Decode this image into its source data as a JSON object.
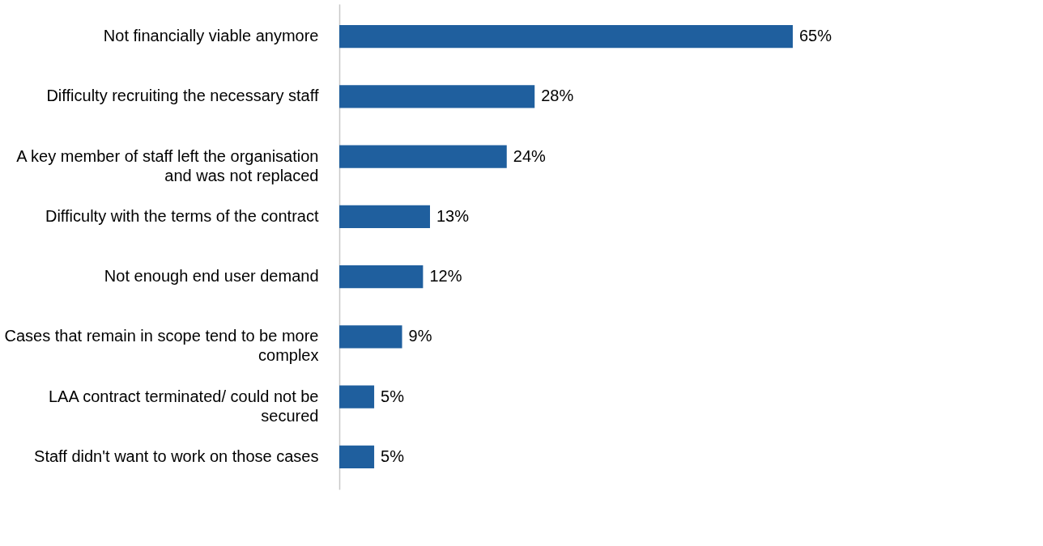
{
  "chart_data": {
    "type": "bar",
    "orientation": "horizontal",
    "categories": [
      "Not financially viable anymore",
      "Difficulty recruiting the necessary staff",
      "A key member of staff left the organisation and was not replaced",
      "Difficulty with the terms of the contract",
      "Not enough end user demand",
      "Cases that remain in scope tend to be more complex",
      "LAA contract terminated/ could not be secured",
      "Staff didn't want to work on those cases"
    ],
    "values": [
      65,
      28,
      24,
      13,
      12,
      9,
      5,
      5
    ],
    "value_labels": [
      "65%",
      "28%",
      "24%",
      "13%",
      "12%",
      "9%",
      "5%",
      "5%"
    ],
    "color": "#1f5f9e"
  }
}
